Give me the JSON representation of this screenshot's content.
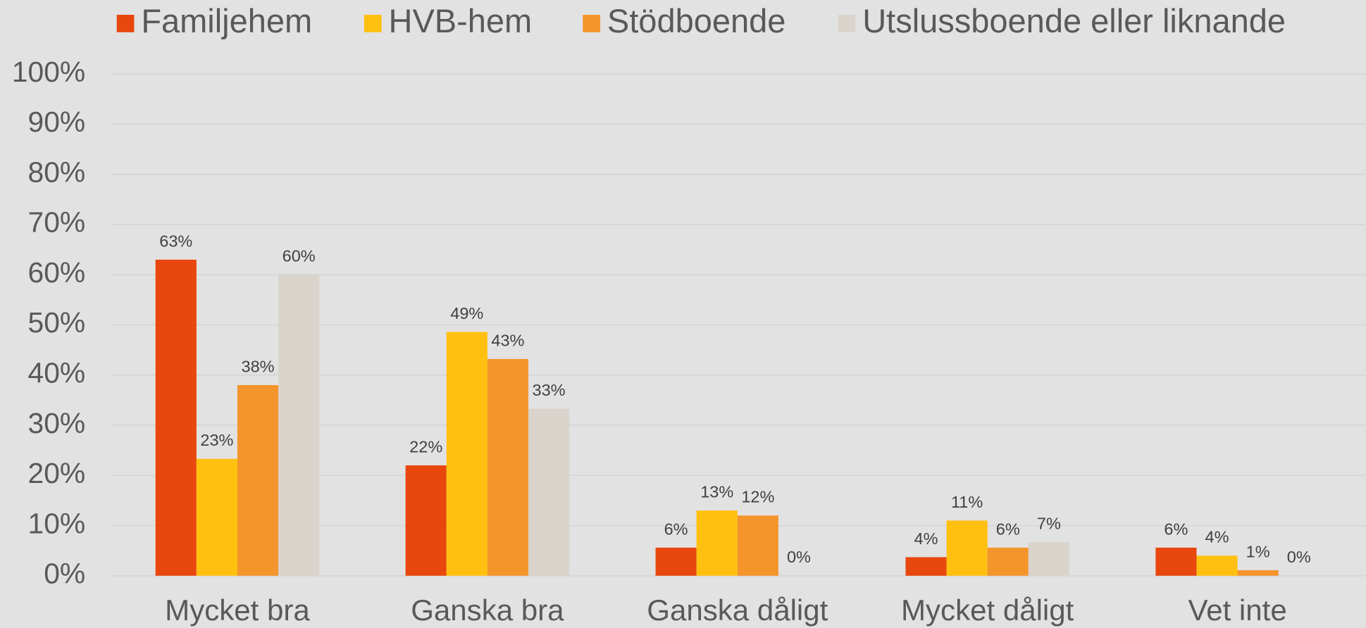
{
  "chart_data": {
    "type": "bar",
    "categories": [
      "Mycket bra",
      "Ganska bra",
      "Ganska dåligt",
      "Mycket dåligt",
      "Vet inte"
    ],
    "series": [
      {
        "name": "Familjehem",
        "color": "#e8470e",
        "values": [
          63,
          22,
          5.6,
          3.7,
          5.6
        ],
        "value_labels": [
          "63%",
          "22%",
          "6%",
          "4%",
          "6%"
        ]
      },
      {
        "name": "HVB-hem",
        "color": "#ffc00f",
        "values": [
          23.3,
          48.6,
          13,
          11,
          4
        ],
        "value_labels": [
          "23%",
          "49%",
          "13%",
          "11%",
          "4%"
        ]
      },
      {
        "name": "Stödboende",
        "color": "#f3952b",
        "values": [
          38,
          43.2,
          12,
          5.6,
          1.1
        ],
        "value_labels": [
          "38%",
          "43%",
          "12%",
          "6%",
          "1%"
        ]
      },
      {
        "name": "Utslussboende eller liknande",
        "color": "#d9d3cc",
        "values": [
          60,
          33.3,
          0,
          6.7,
          0
        ],
        "value_labels": [
          "60%",
          "33%",
          "0%",
          "7%",
          "0%"
        ]
      }
    ],
    "ylim": [
      0,
      100
    ],
    "yticks": [
      {
        "value": 0,
        "label": "0%"
      },
      {
        "value": 10,
        "label": "10%"
      },
      {
        "value": 20,
        "label": "20%"
      },
      {
        "value": 30,
        "label": "30%"
      },
      {
        "value": 40,
        "label": "40%"
      },
      {
        "value": 50,
        "label": "50%"
      },
      {
        "value": 60,
        "label": "60%"
      },
      {
        "value": 70,
        "label": "70%"
      },
      {
        "value": 80,
        "label": "80%"
      },
      {
        "value": 90,
        "label": "90%"
      },
      {
        "value": 100,
        "label": "100%"
      }
    ],
    "grid": true,
    "legend": "top"
  }
}
